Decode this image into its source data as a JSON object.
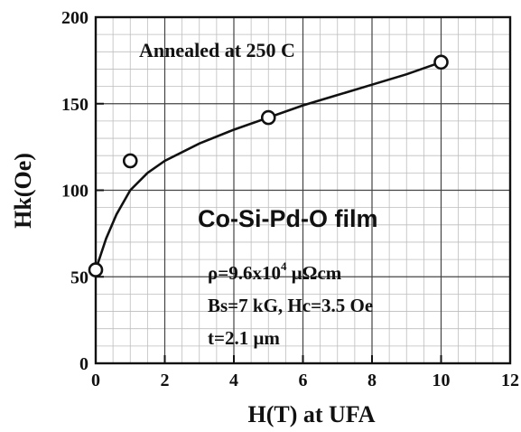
{
  "chart_data": {
    "type": "scatter",
    "title": "",
    "xlabel": "H(T) at UFA",
    "ylabel": "Hk(Oe)",
    "xlim": [
      0,
      12
    ],
    "ylim": [
      0,
      200
    ],
    "x_ticks": [
      0,
      2,
      4,
      6,
      8,
      10,
      12
    ],
    "y_ticks": [
      0,
      50,
      100,
      150,
      200
    ],
    "x_tick_labels": [
      "0",
      "2",
      "4",
      "6",
      "8",
      "10",
      "12"
    ],
    "y_tick_labels": [
      "0",
      "50",
      "100",
      "150",
      "200"
    ],
    "grid": true,
    "legend": "none",
    "series": [
      {
        "marker": "open-circle",
        "x": [
          0,
          1,
          5,
          10
        ],
        "y": [
          54,
          117,
          142,
          174
        ]
      }
    ],
    "fit_curve": {
      "style": "solid-line",
      "x": [
        0,
        0.1,
        0.3,
        0.6,
        1,
        1.5,
        2,
        3,
        4,
        5,
        6,
        7,
        8,
        9,
        10
      ],
      "y": [
        54,
        60,
        72,
        86,
        100,
        110,
        117,
        127,
        135,
        142,
        149,
        155,
        161,
        167,
        174
      ]
    },
    "annotations": {
      "treatment": "Annealed at 250 C",
      "film": "Co-Si-Pd-O film",
      "resistivity_main": "ρ=9.6x10",
      "resistivity_exp": "4",
      "resistivity_unit": " μΩcm",
      "magnetic": "Bs=7 kG, Hc=3.5 Oe",
      "thickness": "t=2.1 μm"
    },
    "colors": {
      "axis": "#111111",
      "major_grid": "#444444",
      "minor_grid": "#bdbdbd",
      "marker_fill": "#ffffff",
      "line": "#111111"
    }
  }
}
